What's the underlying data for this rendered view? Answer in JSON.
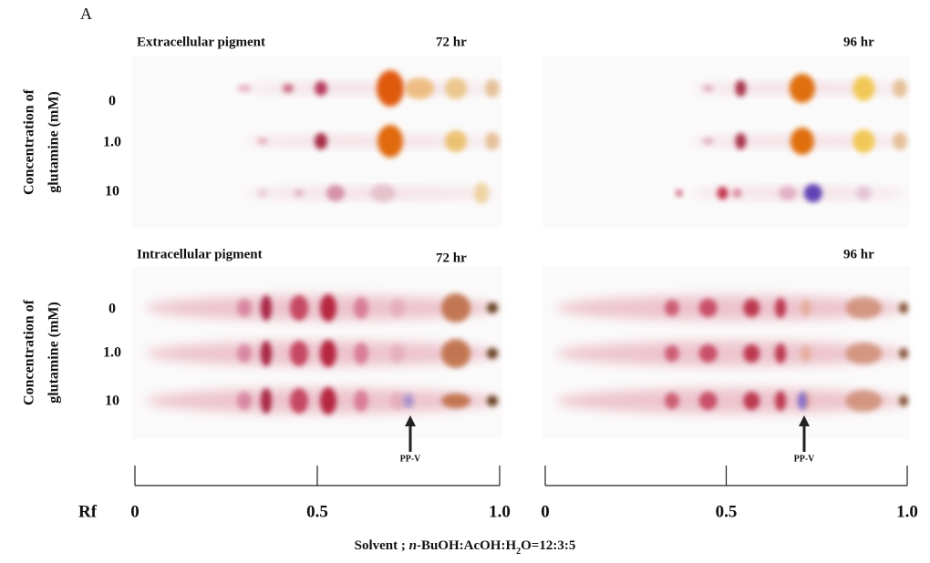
{
  "panel_label": "A",
  "y_axis_label": [
    "Concentration of",
    "glutamine (mM)"
  ],
  "row_labels": [
    "0",
    "1.0",
    "10"
  ],
  "sections": [
    {
      "title": "Extracellular pigment",
      "times": [
        "72 hr",
        "96 hr"
      ]
    },
    {
      "title": "Intracellular pigment",
      "times": [
        "72 hr",
        "96 hr"
      ]
    }
  ],
  "rf_axis": {
    "label": "Rf",
    "ticks": [
      "0",
      "0.5",
      "1.0"
    ]
  },
  "marker": "PP-V",
  "solvent": {
    "prefix": "Solvent ; ",
    "italic": "n",
    "main": "-BuOH:AcOH:H",
    "subscript": "2",
    "suffix": "O=12:3:5"
  }
}
